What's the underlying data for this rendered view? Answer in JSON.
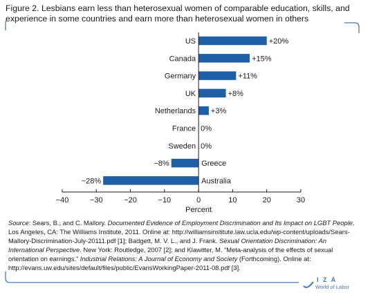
{
  "figure": {
    "title_line1": "Figure 2. Lesbians earn less than heterosexual women of comparable education, skills, and",
    "title_line2": "experience in some countries and earn more than heterosexual women in others"
  },
  "source": {
    "label": "Source",
    "text_a": ": Sears, B., and C. Mallory. ",
    "title_a": "Documented Evidence of Employment Discrimination and Its Impact on LGBT People",
    "text_b": ". Los Angeles, CA: The Williams Institute, 2011. Online at: http://williamsinstitute.law.ucla.edu/wp-content/uploads/Sears-Mallory-Discrimination-July-20111.pdf [1]; Badgett, M. V. L., and J. Frank. ",
    "title_b": "Sexual Orientation Discrimination: An International Perspective",
    "text_c": ". New York: Routledge, 2007 [2]; and Klawitter, M. “Meta-analysis of the effects of sexual orientation on earnings.” ",
    "title_c": "Industrial Relations: A Journal of Economy and Society",
    "text_d": " (Forthcoming). Online at: http://evans.uw.edu/sites/default/files/public/EvansWorkingPaper-2011-08.pdf [3]."
  },
  "logo": {
    "name": "I Z A",
    "tagline": "World of Labor"
  },
  "colors": {
    "bar": "#1f5fa8",
    "text": "#1a1a1a",
    "frame": "#4a76b2"
  },
  "chart_data": {
    "type": "bar",
    "orientation": "horizontal",
    "categories": [
      "US",
      "Canada",
      "Germany",
      "UK",
      "Netherlands",
      "France",
      "Sweden",
      "Greece",
      "Australia"
    ],
    "values": [
      20,
      15,
      11,
      8,
      3,
      0,
      0,
      -8,
      -28
    ],
    "data_labels": [
      "+20%",
      "+15%",
      "+11%",
      "+8%",
      "+3%",
      "0%",
      "0%",
      "−8%",
      "−28%"
    ],
    "xlabel": "Percent",
    "ylabel": "",
    "xlim": [
      -40,
      30
    ],
    "xticks": [
      -40,
      -30,
      -20,
      -10,
      0,
      10,
      20,
      30
    ],
    "xtick_labels": [
      "−40",
      "−30",
      "−20",
      "−10",
      "0",
      "10",
      "20",
      "30"
    ],
    "grid": false,
    "legend": "none"
  }
}
